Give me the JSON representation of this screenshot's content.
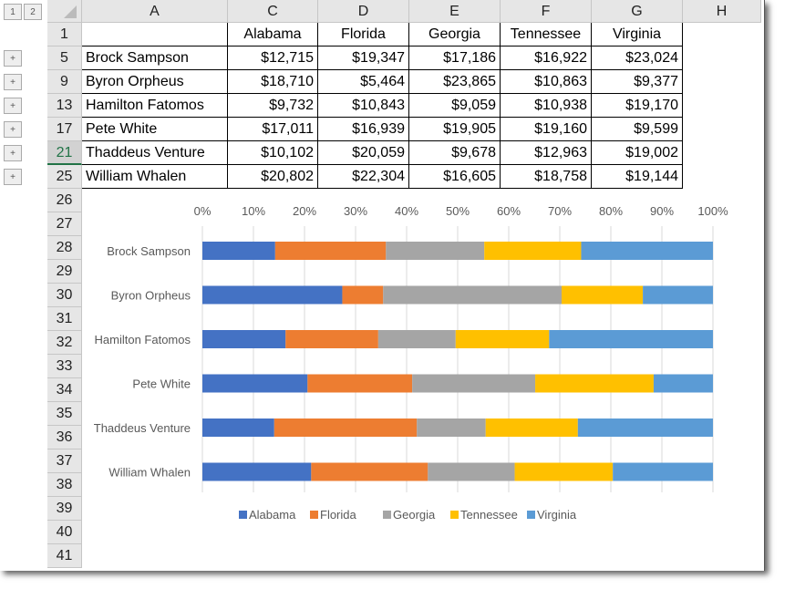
{
  "outline": {
    "levels": [
      "1",
      "2"
    ],
    "expand_symbol": "+"
  },
  "columns": [
    "A",
    "C",
    "D",
    "E",
    "F",
    "G",
    "H"
  ],
  "header_row": {
    "row": "1",
    "states": [
      "Alabama",
      "Florida",
      "Georgia",
      "Tennessee",
      "Virginia"
    ]
  },
  "rows": [
    {
      "row": "5",
      "name": "Brock Sampson",
      "values": [
        "$12,715",
        "$19,347",
        "$17,186",
        "$16,922",
        "$23,024"
      ]
    },
    {
      "row": "9",
      "name": "Byron Orpheus",
      "values": [
        "$18,710",
        "$5,464",
        "$23,865",
        "$10,863",
        "$9,377"
      ]
    },
    {
      "row": "13",
      "name": "Hamilton Fatomos",
      "values": [
        "$9,732",
        "$10,843",
        "$9,059",
        "$10,938",
        "$19,170"
      ]
    },
    {
      "row": "17",
      "name": "Pete White",
      "values": [
        "$17,011",
        "$16,939",
        "$19,905",
        "$19,160",
        "$9,599"
      ]
    },
    {
      "row": "21",
      "name": "Thaddeus Venture",
      "values": [
        "$10,102",
        "$20,059",
        "$9,678",
        "$12,963",
        "$19,002"
      ]
    },
    {
      "row": "25",
      "name": "William Whalen",
      "values": [
        "$20,802",
        "$22,304",
        "$16,605",
        "$18,758",
        "$19,144"
      ]
    }
  ],
  "empty_rows": [
    "26",
    "27",
    "28",
    "29",
    "30",
    "31",
    "32",
    "33",
    "34",
    "35",
    "36",
    "37",
    "38",
    "39",
    "40",
    "41"
  ],
  "chart_data": {
    "type": "bar",
    "subtype": "100% stacked horizontal",
    "categories": [
      "Brock Sampson",
      "Byron Orpheus",
      "Hamilton Fatomos",
      "Pete White",
      "Thaddeus Venture",
      "William Whalen"
    ],
    "series": [
      {
        "name": "Alabama",
        "color": "#4472C4",
        "values": [
          12715,
          18710,
          9732,
          17011,
          10102,
          20802
        ]
      },
      {
        "name": "Florida",
        "color": "#ED7D31",
        "values": [
          19347,
          5464,
          10843,
          16939,
          20059,
          22304
        ]
      },
      {
        "name": "Georgia",
        "color": "#A5A5A5",
        "values": [
          17186,
          23865,
          9059,
          19905,
          9678,
          16605
        ]
      },
      {
        "name": "Tennessee",
        "color": "#FFC000",
        "values": [
          16922,
          10863,
          10938,
          19160,
          12963,
          18758
        ]
      },
      {
        "name": "Virginia",
        "color": "#5B9BD5",
        "values": [
          23024,
          9377,
          19170,
          9599,
          19002,
          19144
        ]
      }
    ],
    "x_ticks": [
      "0%",
      "10%",
      "20%",
      "30%",
      "40%",
      "50%",
      "60%",
      "70%",
      "80%",
      "90%",
      "100%"
    ],
    "xlim": [
      0,
      1
    ],
    "axis_position": "top",
    "legend": "bottom",
    "grid": true
  }
}
